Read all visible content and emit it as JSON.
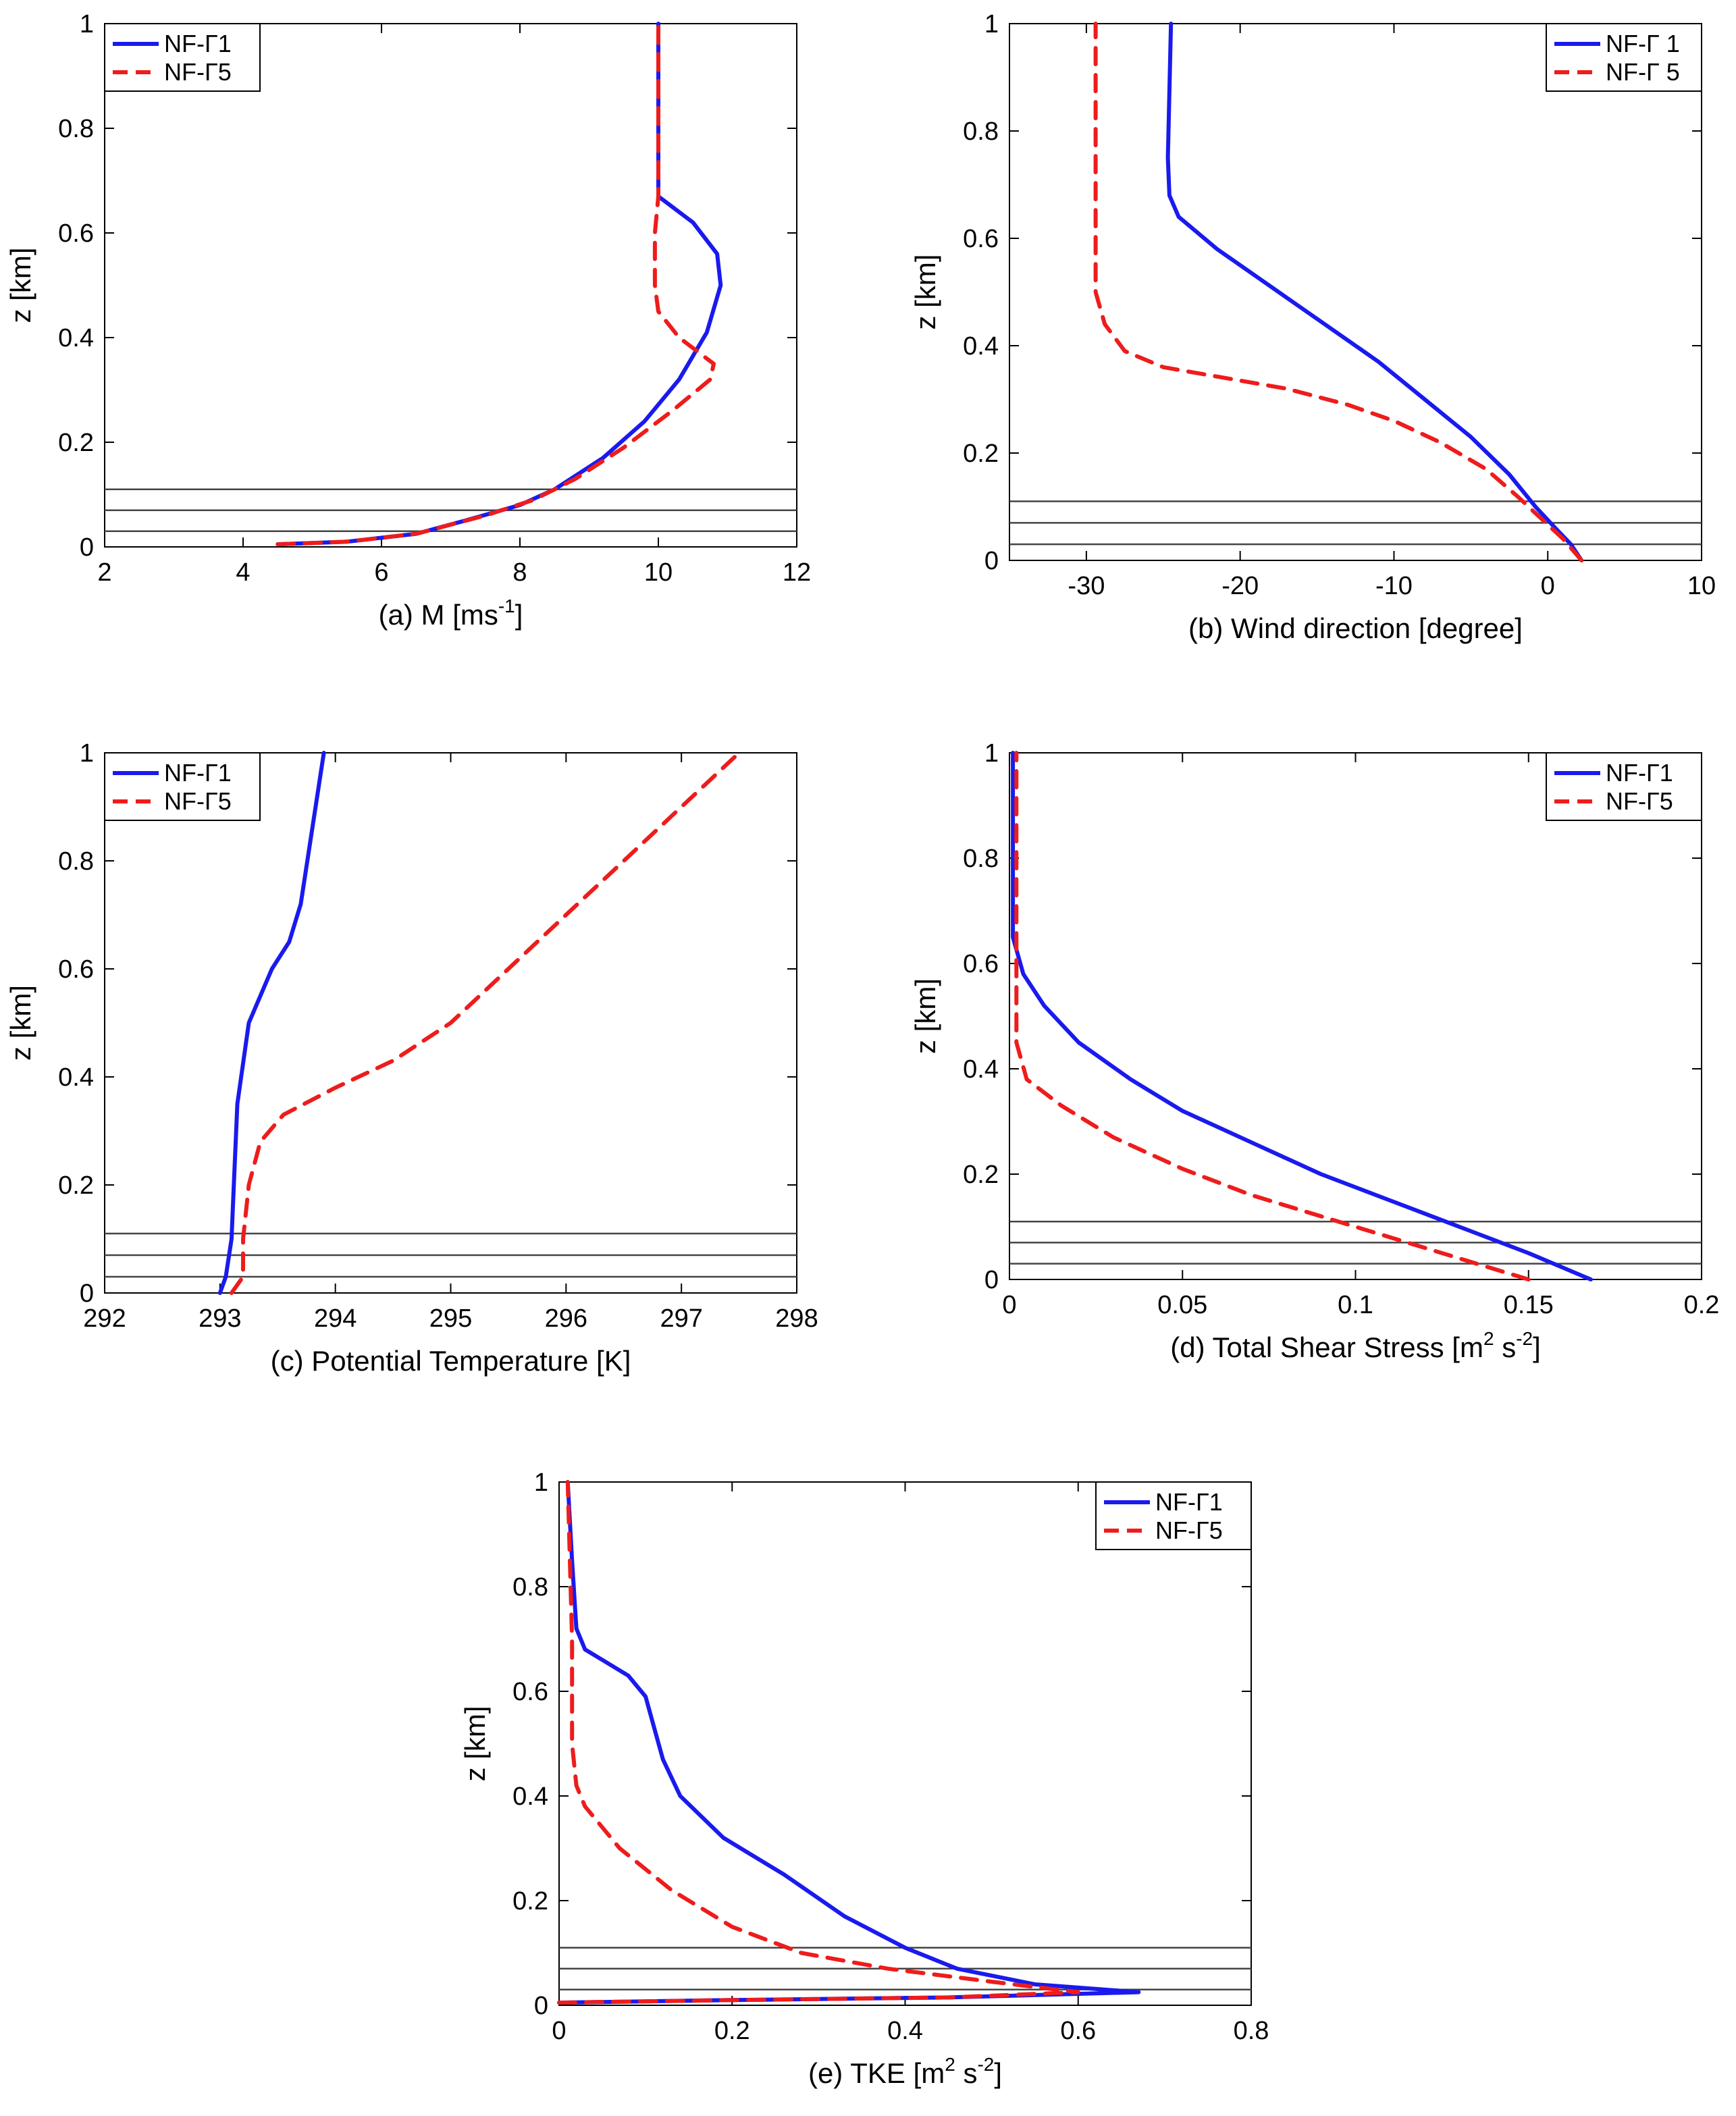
{
  "figure": {
    "panels": [
      "a",
      "b",
      "c",
      "d",
      "e"
    ]
  },
  "colors": {
    "series1": "#1a1aee",
    "series2": "#ee1c1c",
    "axis": "#000000",
    "refline": "#444444"
  },
  "chart_data": [
    {
      "id": "a",
      "type": "line",
      "xlabel": "(a) M [ms",
      "xlabel_sup": "-1",
      "xlabel_tail": "]",
      "ylabel": "z [km]",
      "xlim": [
        2,
        12
      ],
      "ylim": [
        0,
        1
      ],
      "xticks": [
        2,
        4,
        6,
        8,
        10,
        12
      ],
      "yticks": [
        0,
        0.2,
        0.4,
        0.6,
        0.8,
        1
      ],
      "xtick_labels": [
        "2",
        "4",
        "6",
        "8",
        "10",
        "12"
      ],
      "ytick_labels": [
        "0",
        "0.2",
        "0.4",
        "0.6",
        "0.8",
        "1"
      ],
      "ref_lines": [
        0.03,
        0.07,
        0.11
      ],
      "legend_position": "top-left",
      "series": [
        {
          "name": "NF-Γ1",
          "style": "solid",
          "x": [
            4.5,
            5.5,
            6.5,
            7.2,
            8.0,
            8.5,
            9.2,
            9.8,
            10.3,
            10.7,
            10.9,
            10.85,
            10.5,
            10.0,
            10.0,
            10.0
          ],
          "y": [
            0.005,
            0.01,
            0.025,
            0.05,
            0.08,
            0.11,
            0.17,
            0.24,
            0.32,
            0.41,
            0.5,
            0.56,
            0.62,
            0.67,
            0.75,
            1.0
          ]
        },
        {
          "name": "NF-Γ5",
          "style": "dashed",
          "x": [
            4.5,
            5.5,
            6.5,
            7.5,
            8.2,
            8.8,
            9.5,
            10.2,
            10.75,
            10.8,
            10.3,
            10.0,
            9.95,
            9.95,
            10.0,
            10.0
          ],
          "y": [
            0.005,
            0.01,
            0.025,
            0.06,
            0.09,
            0.13,
            0.19,
            0.26,
            0.32,
            0.35,
            0.4,
            0.45,
            0.5,
            0.6,
            0.67,
            1.0
          ]
        }
      ]
    },
    {
      "id": "b",
      "type": "line",
      "xlabel": "(b) Wind direction [degree]",
      "ylabel": "z [km]",
      "xlim": [
        -35,
        10
      ],
      "ylim": [
        0,
        1
      ],
      "xticks": [
        -30,
        -20,
        -10,
        0,
        10
      ],
      "yticks": [
        0,
        0.2,
        0.4,
        0.6,
        0.8,
        1
      ],
      "xtick_labels": [
        "-30",
        "-20",
        "-10",
        "0",
        "10"
      ],
      "ytick_labels": [
        "0",
        "0.2",
        "0.4",
        "0.6",
        "0.8",
        "1"
      ],
      "ref_lines": [
        0.03,
        0.07,
        0.11
      ],
      "legend_position": "top-right",
      "series": [
        {
          "name": "NF-Γ 1",
          "style": "solid",
          "x": [
            2.2,
            1.5,
            0.5,
            -0.8,
            -2.5,
            -5,
            -8,
            -11,
            -14.5,
            -18,
            -21.5,
            -24,
            -24.6,
            -24.7,
            -24.5
          ],
          "y": [
            0.0,
            0.03,
            0.06,
            0.1,
            0.16,
            0.23,
            0.3,
            0.37,
            0.44,
            0.51,
            0.58,
            0.64,
            0.68,
            0.75,
            1.0
          ]
        },
        {
          "name": "NF-Γ 5",
          "style": "dashed",
          "x": [
            2.2,
            1.0,
            -0.5,
            -2,
            -4,
            -7,
            -10,
            -13,
            -17,
            -21,
            -25,
            -27.5,
            -28.8,
            -29.4,
            -29.4,
            -29.4
          ],
          "y": [
            0.0,
            0.04,
            0.08,
            0.12,
            0.17,
            0.22,
            0.26,
            0.29,
            0.32,
            0.34,
            0.36,
            0.39,
            0.44,
            0.5,
            0.7,
            1.0
          ]
        }
      ]
    },
    {
      "id": "c",
      "type": "line",
      "xlabel": "(c) Potential Temperature [K]",
      "ylabel": "z [km]",
      "xlim": [
        292,
        298
      ],
      "ylim": [
        0,
        1
      ],
      "xticks": [
        292,
        293,
        294,
        295,
        296,
        297,
        298
      ],
      "yticks": [
        0,
        0.2,
        0.4,
        0.6,
        0.8,
        1
      ],
      "xtick_labels": [
        "292",
        "293",
        "294",
        "295",
        "296",
        "297",
        "298"
      ],
      "ytick_labels": [
        "0",
        "0.2",
        "0.4",
        "0.6",
        "0.8",
        "1"
      ],
      "ref_lines": [
        0.03,
        0.07,
        0.11
      ],
      "legend_position": "top-left",
      "series": [
        {
          "name": "NF-Γ1",
          "style": "solid",
          "x": [
            293.0,
            293.05,
            293.1,
            293.12,
            293.15,
            293.25,
            293.45,
            293.6,
            293.7,
            293.9
          ],
          "y": [
            0.0,
            0.03,
            0.1,
            0.2,
            0.35,
            0.5,
            0.6,
            0.65,
            0.72,
            1.0
          ]
        },
        {
          "name": "NF-Γ5",
          "style": "dashed",
          "x": [
            293.1,
            293.2,
            293.2,
            293.25,
            293.35,
            293.55,
            294.0,
            294.5,
            295.0,
            295.5,
            296.0,
            296.5,
            297.0,
            297.5
          ],
          "y": [
            0.0,
            0.03,
            0.1,
            0.2,
            0.28,
            0.33,
            0.38,
            0.43,
            0.5,
            0.6,
            0.7,
            0.8,
            0.9,
            1.0
          ]
        }
      ]
    },
    {
      "id": "d",
      "type": "line",
      "xlabel": "(d) Total Shear Stress [m",
      "xlabel_sup": "2",
      "xlabel_mid": " s",
      "xlabel_sup2": "-2",
      "xlabel_tail": "]",
      "ylabel": "z [km]",
      "xlim": [
        0,
        0.2
      ],
      "ylim": [
        0,
        1
      ],
      "xticks": [
        0,
        0.05,
        0.1,
        0.15,
        0.2
      ],
      "yticks": [
        0,
        0.2,
        0.4,
        0.6,
        0.8,
        1
      ],
      "xtick_labels": [
        "0",
        "0.05",
        "0.1",
        "0.15",
        "0.2"
      ],
      "ytick_labels": [
        "0",
        "0.2",
        "0.4",
        "0.6",
        "0.8",
        "1"
      ],
      "ref_lines": [
        0.03,
        0.07,
        0.11
      ],
      "legend_position": "top-right",
      "series": [
        {
          "name": "NF-Γ1",
          "style": "solid",
          "x": [
            0.168,
            0.15,
            0.13,
            0.11,
            0.09,
            0.07,
            0.05,
            0.035,
            0.02,
            0.01,
            0.004,
            0.001,
            0.001,
            0.001
          ],
          "y": [
            0.0,
            0.05,
            0.1,
            0.15,
            0.2,
            0.26,
            0.32,
            0.38,
            0.45,
            0.52,
            0.58,
            0.65,
            0.8,
            1.0
          ]
        },
        {
          "name": "NF-Γ5",
          "style": "dashed",
          "x": [
            0.15,
            0.13,
            0.11,
            0.09,
            0.07,
            0.05,
            0.03,
            0.015,
            0.005,
            0.002,
            0.002,
            0.002
          ],
          "y": [
            0.0,
            0.04,
            0.08,
            0.12,
            0.16,
            0.21,
            0.27,
            0.33,
            0.38,
            0.45,
            0.7,
            1.0
          ]
        }
      ]
    },
    {
      "id": "e",
      "type": "line",
      "xlabel": "(e) TKE [m",
      "xlabel_sup": "2",
      "xlabel_mid": " s",
      "xlabel_sup2": "-2",
      "xlabel_tail": "]",
      "ylabel": "z [km]",
      "xlim": [
        0,
        0.8
      ],
      "ylim": [
        0,
        1
      ],
      "xticks": [
        0,
        0.2,
        0.4,
        0.6,
        0.8
      ],
      "yticks": [
        0,
        0.2,
        0.4,
        0.6,
        0.8,
        1
      ],
      "xtick_labels": [
        "0",
        "0.2",
        "0.4",
        "0.6",
        "0.8"
      ],
      "ytick_labels": [
        "0",
        "0.2",
        "0.4",
        "0.6",
        "0.8",
        "1"
      ],
      "ref_lines": [
        0.03,
        0.07,
        0.11
      ],
      "legend_position": "top-right",
      "series": [
        {
          "name": "NF-Γ1",
          "style": "solid",
          "x": [
            0.0,
            0.2,
            0.45,
            0.67,
            0.55,
            0.46,
            0.4,
            0.33,
            0.26,
            0.19,
            0.14,
            0.12,
            0.11,
            0.1,
            0.08,
            0.03,
            0.02,
            0.015,
            0.01
          ],
          "y": [
            0.005,
            0.01,
            0.015,
            0.025,
            0.04,
            0.07,
            0.11,
            0.17,
            0.25,
            0.32,
            0.4,
            0.47,
            0.53,
            0.59,
            0.63,
            0.68,
            0.72,
            0.85,
            1.0
          ]
        },
        {
          "name": "NF-Γ5",
          "style": "dashed",
          "x": [
            0.0,
            0.2,
            0.45,
            0.6,
            0.5,
            0.38,
            0.28,
            0.2,
            0.13,
            0.07,
            0.03,
            0.02,
            0.015,
            0.015,
            0.01
          ],
          "y": [
            0.005,
            0.01,
            0.015,
            0.025,
            0.045,
            0.07,
            0.1,
            0.15,
            0.22,
            0.3,
            0.38,
            0.42,
            0.5,
            0.7,
            1.0
          ]
        }
      ]
    }
  ]
}
